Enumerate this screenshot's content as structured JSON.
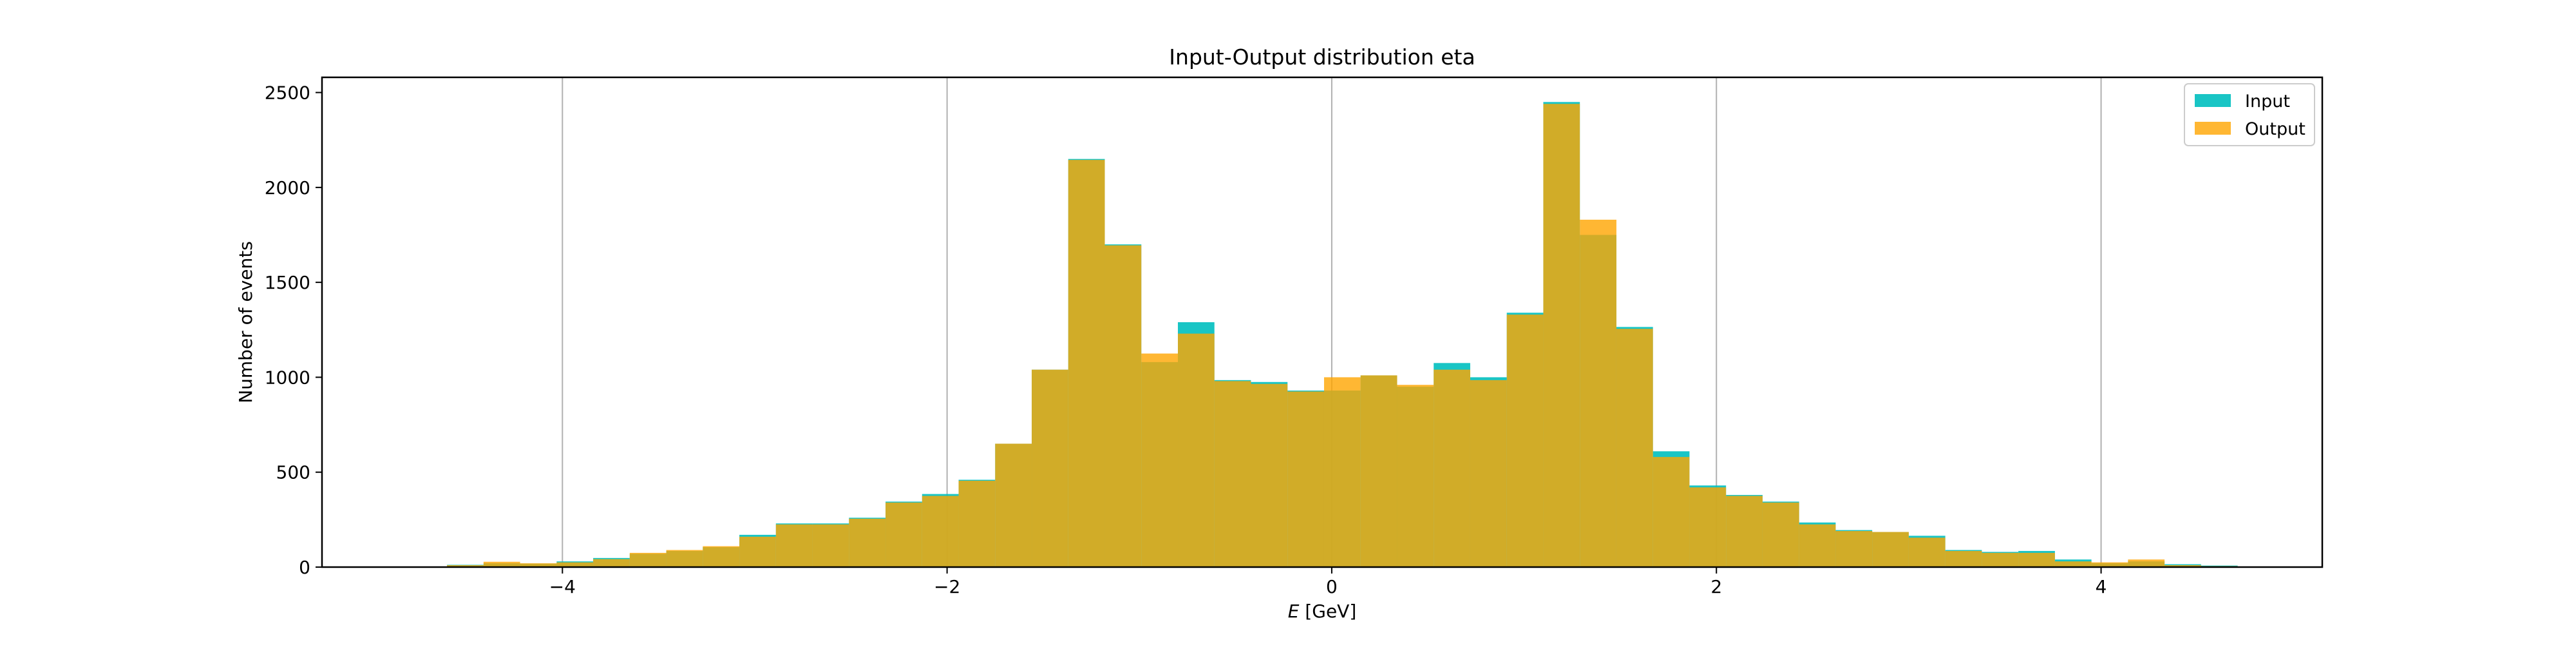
{
  "chart_data": {
    "type": "bar",
    "title": "Input-Output distribution eta",
    "xlabel_italic": "E",
    "xlabel_rest": " [GeV]",
    "ylabel": "Number of events",
    "xlim": [
      -5.25,
      5.15
    ],
    "ylim": [
      0,
      2580
    ],
    "x_ticks": [
      -4,
      -2,
      0,
      2,
      4
    ],
    "x_tick_labels": [
      "−4",
      "−2",
      "0",
      "2",
      "4"
    ],
    "y_ticks": [
      0,
      500,
      1000,
      1500,
      2000,
      2500
    ],
    "y_tick_labels": [
      "0",
      "500",
      "1000",
      "1500",
      "2000",
      "2500"
    ],
    "grid": "vertical",
    "legend_placement": "top-right",
    "bin_edges": [
      -4.6,
      -4.41,
      -4.22,
      -4.03,
      -3.84,
      -3.65,
      -3.46,
      -3.27,
      -3.08,
      -2.89,
      -2.7,
      -2.51,
      -2.32,
      -2.13,
      -1.94,
      -1.75,
      -1.56,
      -1.37,
      -1.18,
      -0.99,
      -0.8,
      -0.61,
      -0.42,
      -0.23,
      -0.04,
      0.15,
      0.34,
      0.53,
      0.72,
      0.91,
      1.1,
      1.29,
      1.48,
      1.67,
      1.86,
      2.05,
      2.24,
      2.43,
      2.62,
      2.81,
      3.0,
      3.19,
      3.38,
      3.57,
      3.76,
      3.95,
      4.14,
      4.33,
      4.52,
      4.71
    ],
    "series": [
      {
        "name": "Input",
        "color": "#00bfbf",
        "alpha": 0.9,
        "values": [
          12,
          20,
          18,
          30,
          48,
          70,
          85,
          105,
          170,
          230,
          230,
          260,
          345,
          385,
          460,
          650,
          1040,
          2150,
          1700,
          1080,
          1290,
          985,
          975,
          930,
          930,
          1010,
          950,
          1075,
          1000,
          1340,
          2450,
          1750,
          1265,
          610,
          430,
          380,
          345,
          235,
          195,
          185,
          165,
          90,
          80,
          85,
          40,
          20,
          30,
          15,
          8
        ]
      },
      {
        "name": "Output",
        "color": "#ffa500",
        "alpha": 0.8,
        "values": [
          10,
          28,
          20,
          25,
          42,
          75,
          90,
          110,
          160,
          225,
          225,
          255,
          340,
          375,
          455,
          650,
          1040,
          2145,
          1695,
          1125,
          1230,
          980,
          965,
          925,
          1000,
          1010,
          960,
          1040,
          985,
          1330,
          2440,
          1830,
          1255,
          580,
          420,
          375,
          340,
          225,
          190,
          185,
          155,
          85,
          75,
          75,
          30,
          25,
          40,
          10,
          5
        ]
      }
    ]
  }
}
